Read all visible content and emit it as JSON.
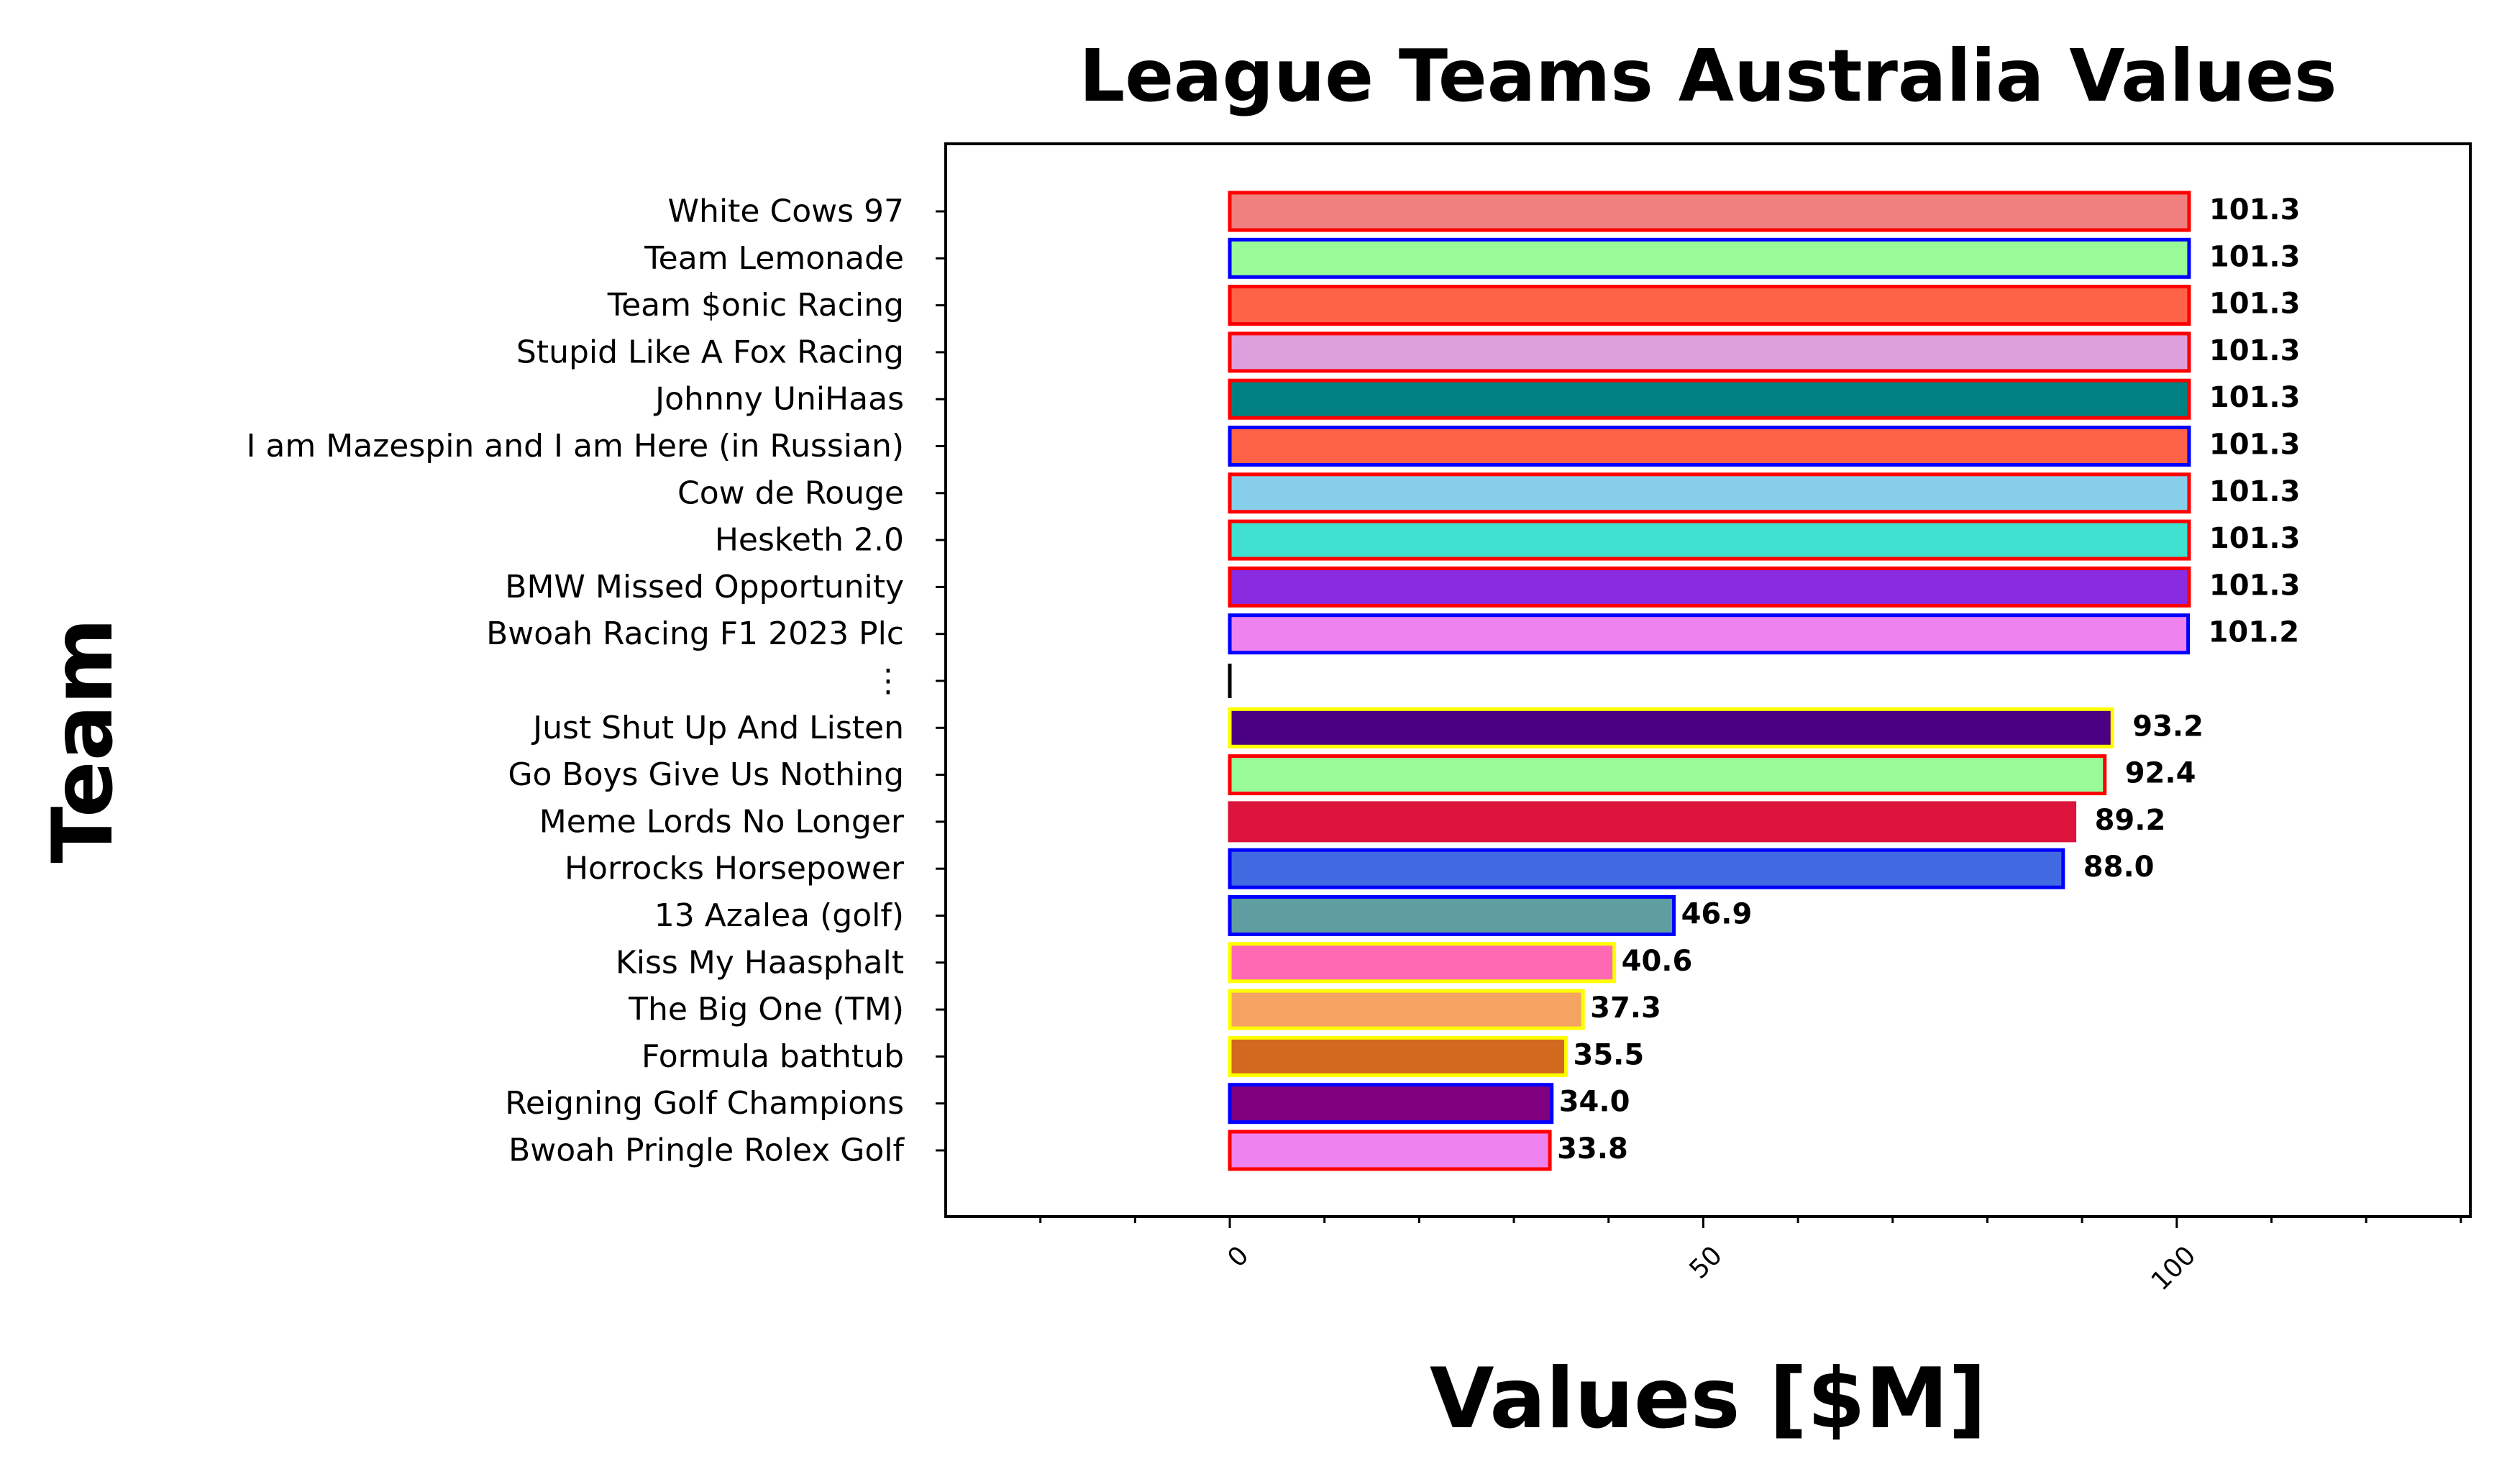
{
  "chart_data": {
    "type": "bar",
    "orientation": "horizontal",
    "title": "League Teams Australia Values",
    "xlabel": "Values [$M]",
    "ylabel": "Team",
    "xlim": [
      -30,
      131
    ],
    "xticks": [
      0,
      50,
      100
    ],
    "xtick_labels": [
      "0",
      "50",
      "100"
    ],
    "grid": false,
    "legend": "none",
    "bars": [
      {
        "label": "White Cows 97",
        "value": 101.3,
        "value_label": "101.3",
        "fill": "#F08080",
        "edge": "#FF0000"
      },
      {
        "label": "Team Lemonade",
        "value": 101.3,
        "value_label": "101.3",
        "fill": "#98FB98",
        "edge": "#0000FF"
      },
      {
        "label": "Team $onic Racing",
        "value": 101.3,
        "value_label": "101.3",
        "fill": "#FF6347",
        "edge": "#FF0000"
      },
      {
        "label": "Stupid Like A Fox Racing",
        "value": 101.3,
        "value_label": "101.3",
        "fill": "#DDA0DD",
        "edge": "#FF0000"
      },
      {
        "label": "Johnny UniHaas",
        "value": 101.3,
        "value_label": "101.3",
        "fill": "#008080",
        "edge": "#FF0000"
      },
      {
        "label": "I am Mazespin and I am Here (in Russian)",
        "value": 101.3,
        "value_label": "101.3",
        "fill": "#FF6347",
        "edge": "#0000FF"
      },
      {
        "label": "Cow de Rouge",
        "value": 101.3,
        "value_label": "101.3",
        "fill": "#87CEEB",
        "edge": "#FF0000"
      },
      {
        "label": "Hesketh 2.0",
        "value": 101.3,
        "value_label": "101.3",
        "fill": "#40E0D0",
        "edge": "#FF0000"
      },
      {
        "label": "BMW Missed Opportunity",
        "value": 101.3,
        "value_label": "101.3",
        "fill": "#8A2BE2",
        "edge": "#FF0000"
      },
      {
        "label": "Bwoah Racing F1 2023 Plc",
        "value": 101.2,
        "value_label": "101.2",
        "fill": "#EE82EE",
        "edge": "#0000FF"
      },
      {
        "label": "⋮",
        "value": 0,
        "value_label": "",
        "fill": "#000000",
        "edge": "#000000",
        "separator": true
      },
      {
        "label": "Just Shut Up And Listen",
        "value": 93.2,
        "value_label": "93.2",
        "fill": "#4B0082",
        "edge": "#FFFF00"
      },
      {
        "label": "Go Boys Give Us Nothing",
        "value": 92.4,
        "value_label": "92.4",
        "fill": "#98FB98",
        "edge": "#FF0000"
      },
      {
        "label": "Meme Lords No Longer",
        "value": 89.2,
        "value_label": "89.2",
        "fill": "#DC143C",
        "edge": "#DC143C"
      },
      {
        "label": "Horrocks Horsepower",
        "value": 88.0,
        "value_label": "88.0",
        "fill": "#4169E1",
        "edge": "#0000FF"
      },
      {
        "label": "13 Azalea (golf)",
        "value": 46.9,
        "value_label": "46.9",
        "fill": "#5F9EA0",
        "edge": "#0000FF"
      },
      {
        "label": "Kiss My Haasphalt",
        "value": 40.6,
        "value_label": "40.6",
        "fill": "#FF69B4",
        "edge": "#FFFF00"
      },
      {
        "label": "The Big One (TM)",
        "value": 37.3,
        "value_label": "37.3",
        "fill": "#F4A460",
        "edge": "#FFFF00"
      },
      {
        "label": "Formula bathtub",
        "value": 35.5,
        "value_label": "35.5",
        "fill": "#D2691E",
        "edge": "#FFFF00"
      },
      {
        "label": "Reigning Golf Champions",
        "value": 34.0,
        "value_label": "34.0",
        "fill": "#800080",
        "edge": "#0000FF"
      },
      {
        "label": "Bwoah Pringle Rolex Golf",
        "value": 33.8,
        "value_label": "33.8",
        "fill": "#EE82EE",
        "edge": "#FF0000"
      }
    ]
  }
}
